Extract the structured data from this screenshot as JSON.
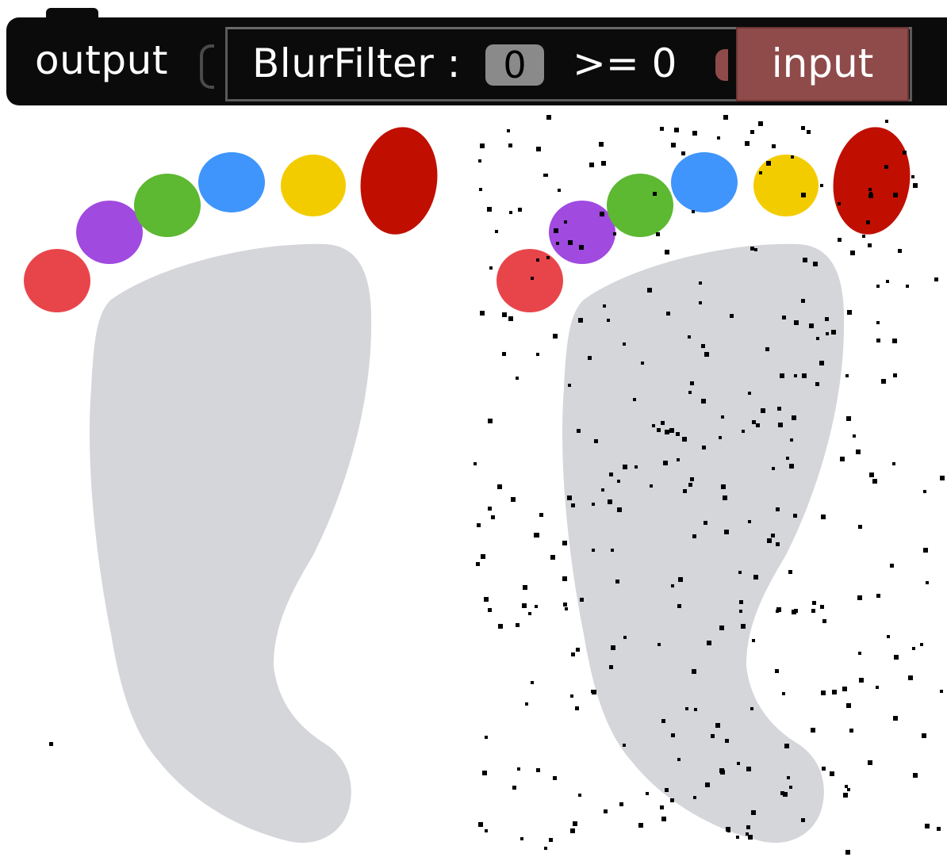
{
  "block": {
    "output_label": "output",
    "filter_label": "BlurFilter :",
    "value": "0",
    "comparison": ">= 0",
    "input_label": "input",
    "colors": {
      "block_bg": "#0b0b0b",
      "input_block": "#8f4a4a",
      "field_bg": "#8a8a8a"
    }
  },
  "images": {
    "foot_color": "#d5d6da",
    "toe_colors": [
      "#e8454a",
      "#a04ae0",
      "#5db832",
      "#3f95fb",
      "#f3cc00",
      "#c00f00"
    ],
    "noise_color": "#000000"
  }
}
